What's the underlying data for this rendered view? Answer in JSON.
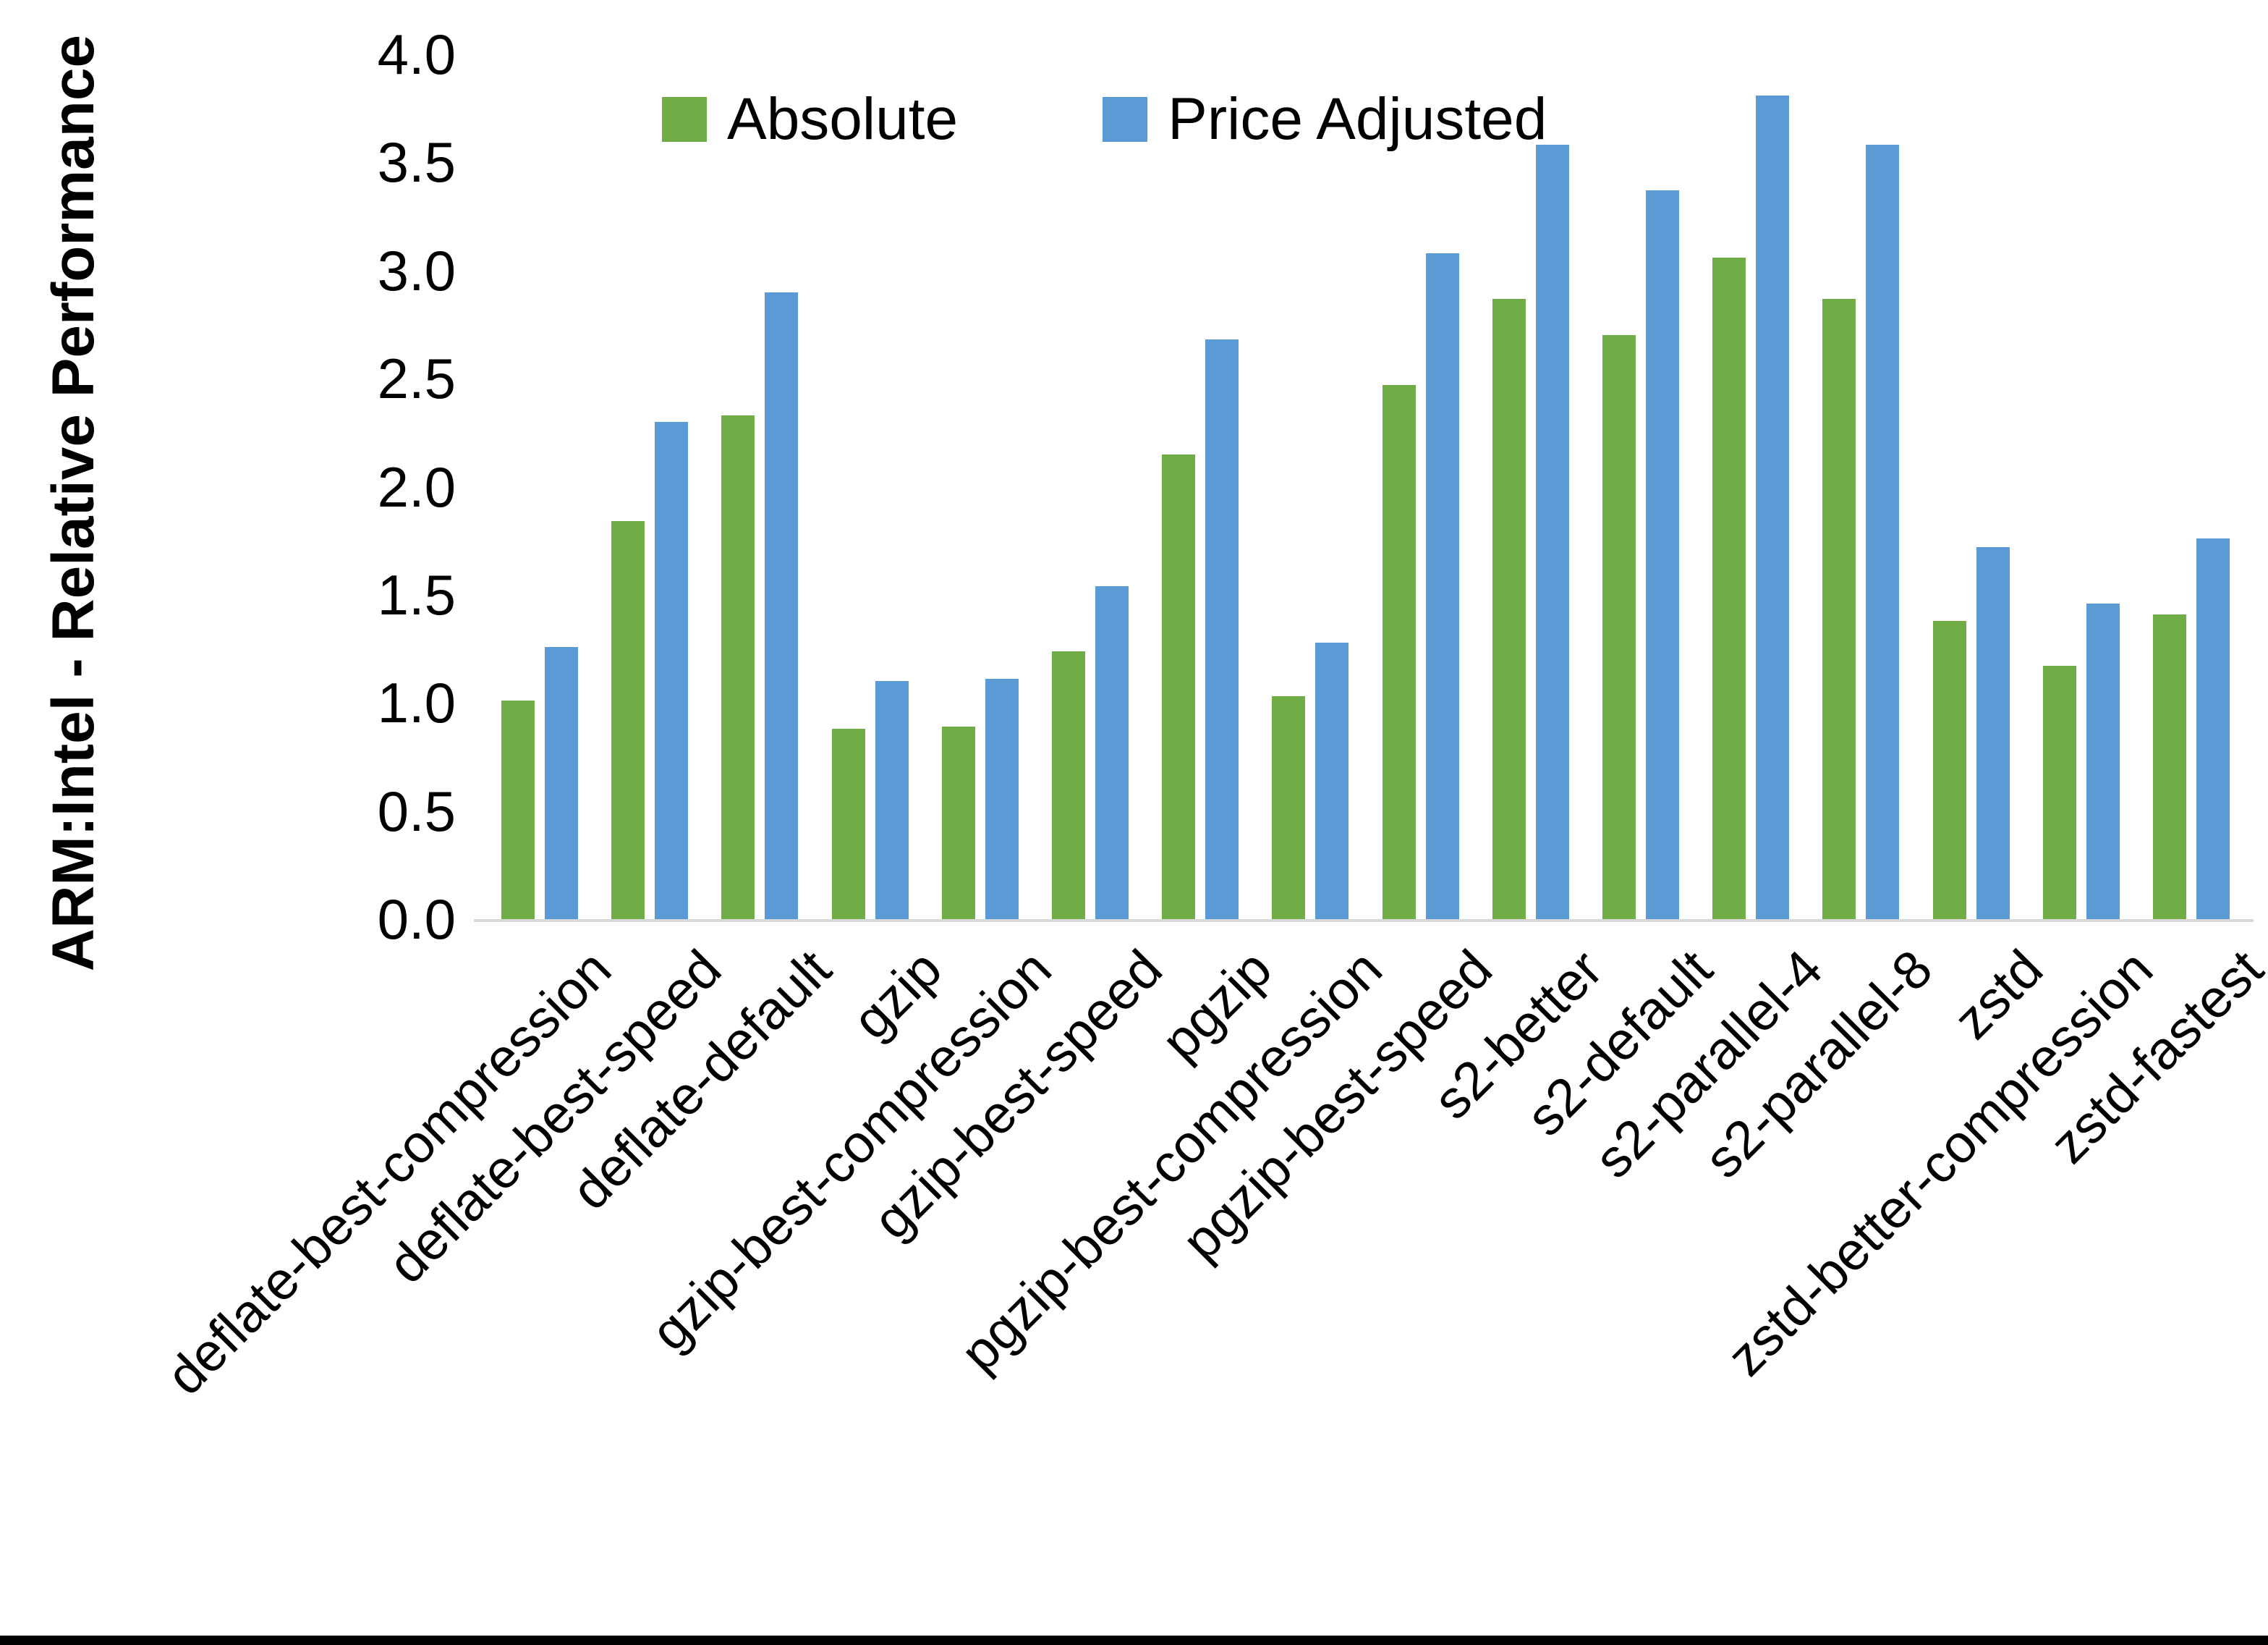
{
  "figure": {
    "background_color": "#ffffff",
    "bottom_border_color": "#000000",
    "axis_line_color": "#d9d9d9"
  },
  "chart_data": {
    "type": "bar",
    "title": "",
    "xlabel": "",
    "ylabel": "ARM:Intel - Relative Performance",
    "ylim": [
      0,
      4
    ],
    "yticks": [
      "0.0",
      "0.5",
      "1.0",
      "1.5",
      "2.0",
      "2.5",
      "3.0",
      "3.5",
      "4.0"
    ],
    "grid": false,
    "legend_position": "top-center",
    "categories": [
      "deflate-best-compression",
      "deflate-best-speed",
      "deflate-default",
      "gzip",
      "gzip-best-compression",
      "gzip-best-speed",
      "pgzip",
      "pgzip-best-compression",
      "pgzip-best-speed",
      "s2-better",
      "s2-default",
      "s2-parallel-4",
      "s2-parallel-8",
      "zstd",
      "zstd-better-compression",
      "zstd-fastest"
    ],
    "series": [
      {
        "name": "Absolute",
        "color": "#70AD47",
        "values": [
          1.01,
          1.84,
          2.33,
          0.88,
          0.89,
          1.24,
          2.15,
          1.03,
          2.47,
          2.87,
          2.7,
          3.06,
          2.87,
          1.38,
          1.17,
          1.41
        ]
      },
      {
        "name": "Price Adjusted",
        "color": "#5B9BD5",
        "values": [
          1.26,
          2.3,
          2.9,
          1.1,
          1.11,
          1.54,
          2.68,
          1.28,
          3.08,
          3.58,
          3.37,
          3.81,
          3.58,
          1.72,
          1.46,
          1.76
        ]
      }
    ]
  }
}
